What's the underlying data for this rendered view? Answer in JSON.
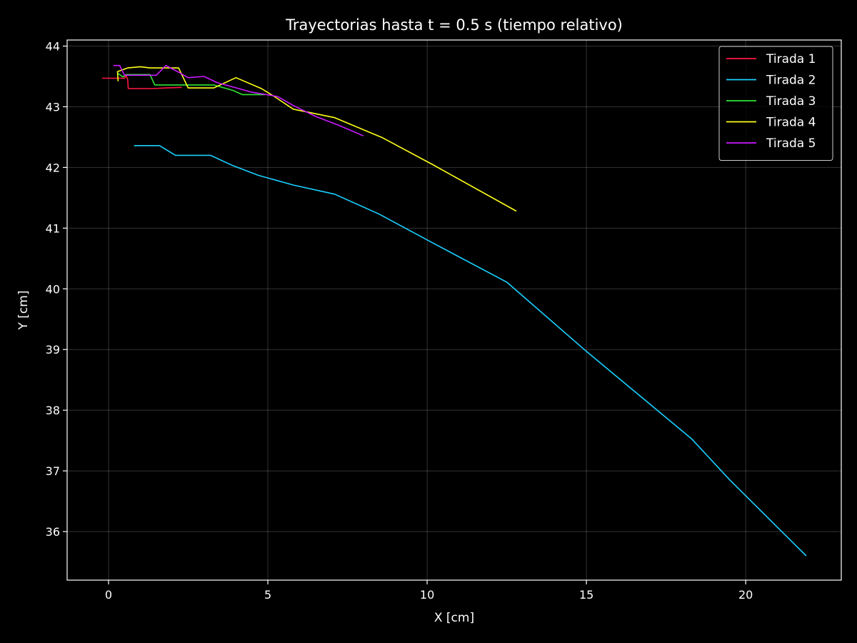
{
  "chart_data": {
    "type": "line",
    "title": "Trayectorias hasta t = 0.5 s (tiempo relativo)",
    "xlabel": "X [cm]",
    "ylabel": "Y [cm]",
    "xlim": [
      -1.3,
      23.0
    ],
    "ylim": [
      35.2,
      44.1
    ],
    "xticks": [
      0,
      5,
      10,
      15,
      20
    ],
    "yticks": [
      36,
      37,
      38,
      39,
      40,
      41,
      42,
      43,
      44
    ],
    "grid": true,
    "legend_position": "top-right",
    "background": "#000000",
    "series": [
      {
        "name": "Tirada 1",
        "color": "#ff1744",
        "points": [
          [
            -0.2,
            43.47
          ],
          [
            0.5,
            43.47
          ],
          [
            0.55,
            43.51
          ],
          [
            0.6,
            43.45
          ],
          [
            0.62,
            43.3
          ],
          [
            1.4,
            43.3
          ],
          [
            1.8,
            43.31
          ],
          [
            2.3,
            43.32
          ]
        ]
      },
      {
        "name": "Tirada 2",
        "color": "#1ad1ff",
        "points": [
          [
            0.8,
            42.36
          ],
          [
            1.6,
            42.36
          ],
          [
            2.1,
            42.2
          ],
          [
            3.2,
            42.2
          ],
          [
            3.9,
            42.03
          ],
          [
            4.7,
            41.87
          ],
          [
            5.8,
            41.71
          ],
          [
            7.1,
            41.56
          ],
          [
            8.5,
            41.23
          ],
          [
            10.2,
            40.75
          ],
          [
            12.5,
            40.11
          ],
          [
            15.0,
            38.97
          ],
          [
            18.3,
            37.53
          ],
          [
            19.5,
            36.85
          ],
          [
            21.9,
            35.6
          ]
        ]
      },
      {
        "name": "Tirada 3",
        "color": "#2ee635",
        "points": [
          [
            0.3,
            43.55
          ],
          [
            0.45,
            43.49
          ],
          [
            0.55,
            43.53
          ],
          [
            1.3,
            43.53
          ],
          [
            1.45,
            43.36
          ],
          [
            3.3,
            43.36
          ],
          [
            3.9,
            43.27
          ],
          [
            4.2,
            43.2
          ],
          [
            4.9,
            43.2
          ]
        ]
      },
      {
        "name": "Tirada 4",
        "color": "#ffff1a",
        "points": [
          [
            0.3,
            43.42
          ],
          [
            0.28,
            43.58
          ],
          [
            0.6,
            43.64
          ],
          [
            1.0,
            43.66
          ],
          [
            1.3,
            43.64
          ],
          [
            2.2,
            43.64
          ],
          [
            2.5,
            43.31
          ],
          [
            3.3,
            43.31
          ],
          [
            4.0,
            43.48
          ],
          [
            4.8,
            43.3
          ],
          [
            5.2,
            43.17
          ],
          [
            5.8,
            42.96
          ],
          [
            7.1,
            42.82
          ],
          [
            8.6,
            42.49
          ],
          [
            10.2,
            42.04
          ],
          [
            12.8,
            41.28
          ]
        ]
      },
      {
        "name": "Tirada 5",
        "color": "#cc1aff",
        "points": [
          [
            0.15,
            43.68
          ],
          [
            0.35,
            43.68
          ],
          [
            0.5,
            43.52
          ],
          [
            1.5,
            43.52
          ],
          [
            1.8,
            43.68
          ],
          [
            2.2,
            43.57
          ],
          [
            2.5,
            43.48
          ],
          [
            3.0,
            43.5
          ],
          [
            3.4,
            43.4
          ],
          [
            4.5,
            43.24
          ],
          [
            5.3,
            43.17
          ],
          [
            5.8,
            43.02
          ],
          [
            6.5,
            42.84
          ],
          [
            7.2,
            42.7
          ],
          [
            8.0,
            42.52
          ]
        ]
      }
    ]
  }
}
